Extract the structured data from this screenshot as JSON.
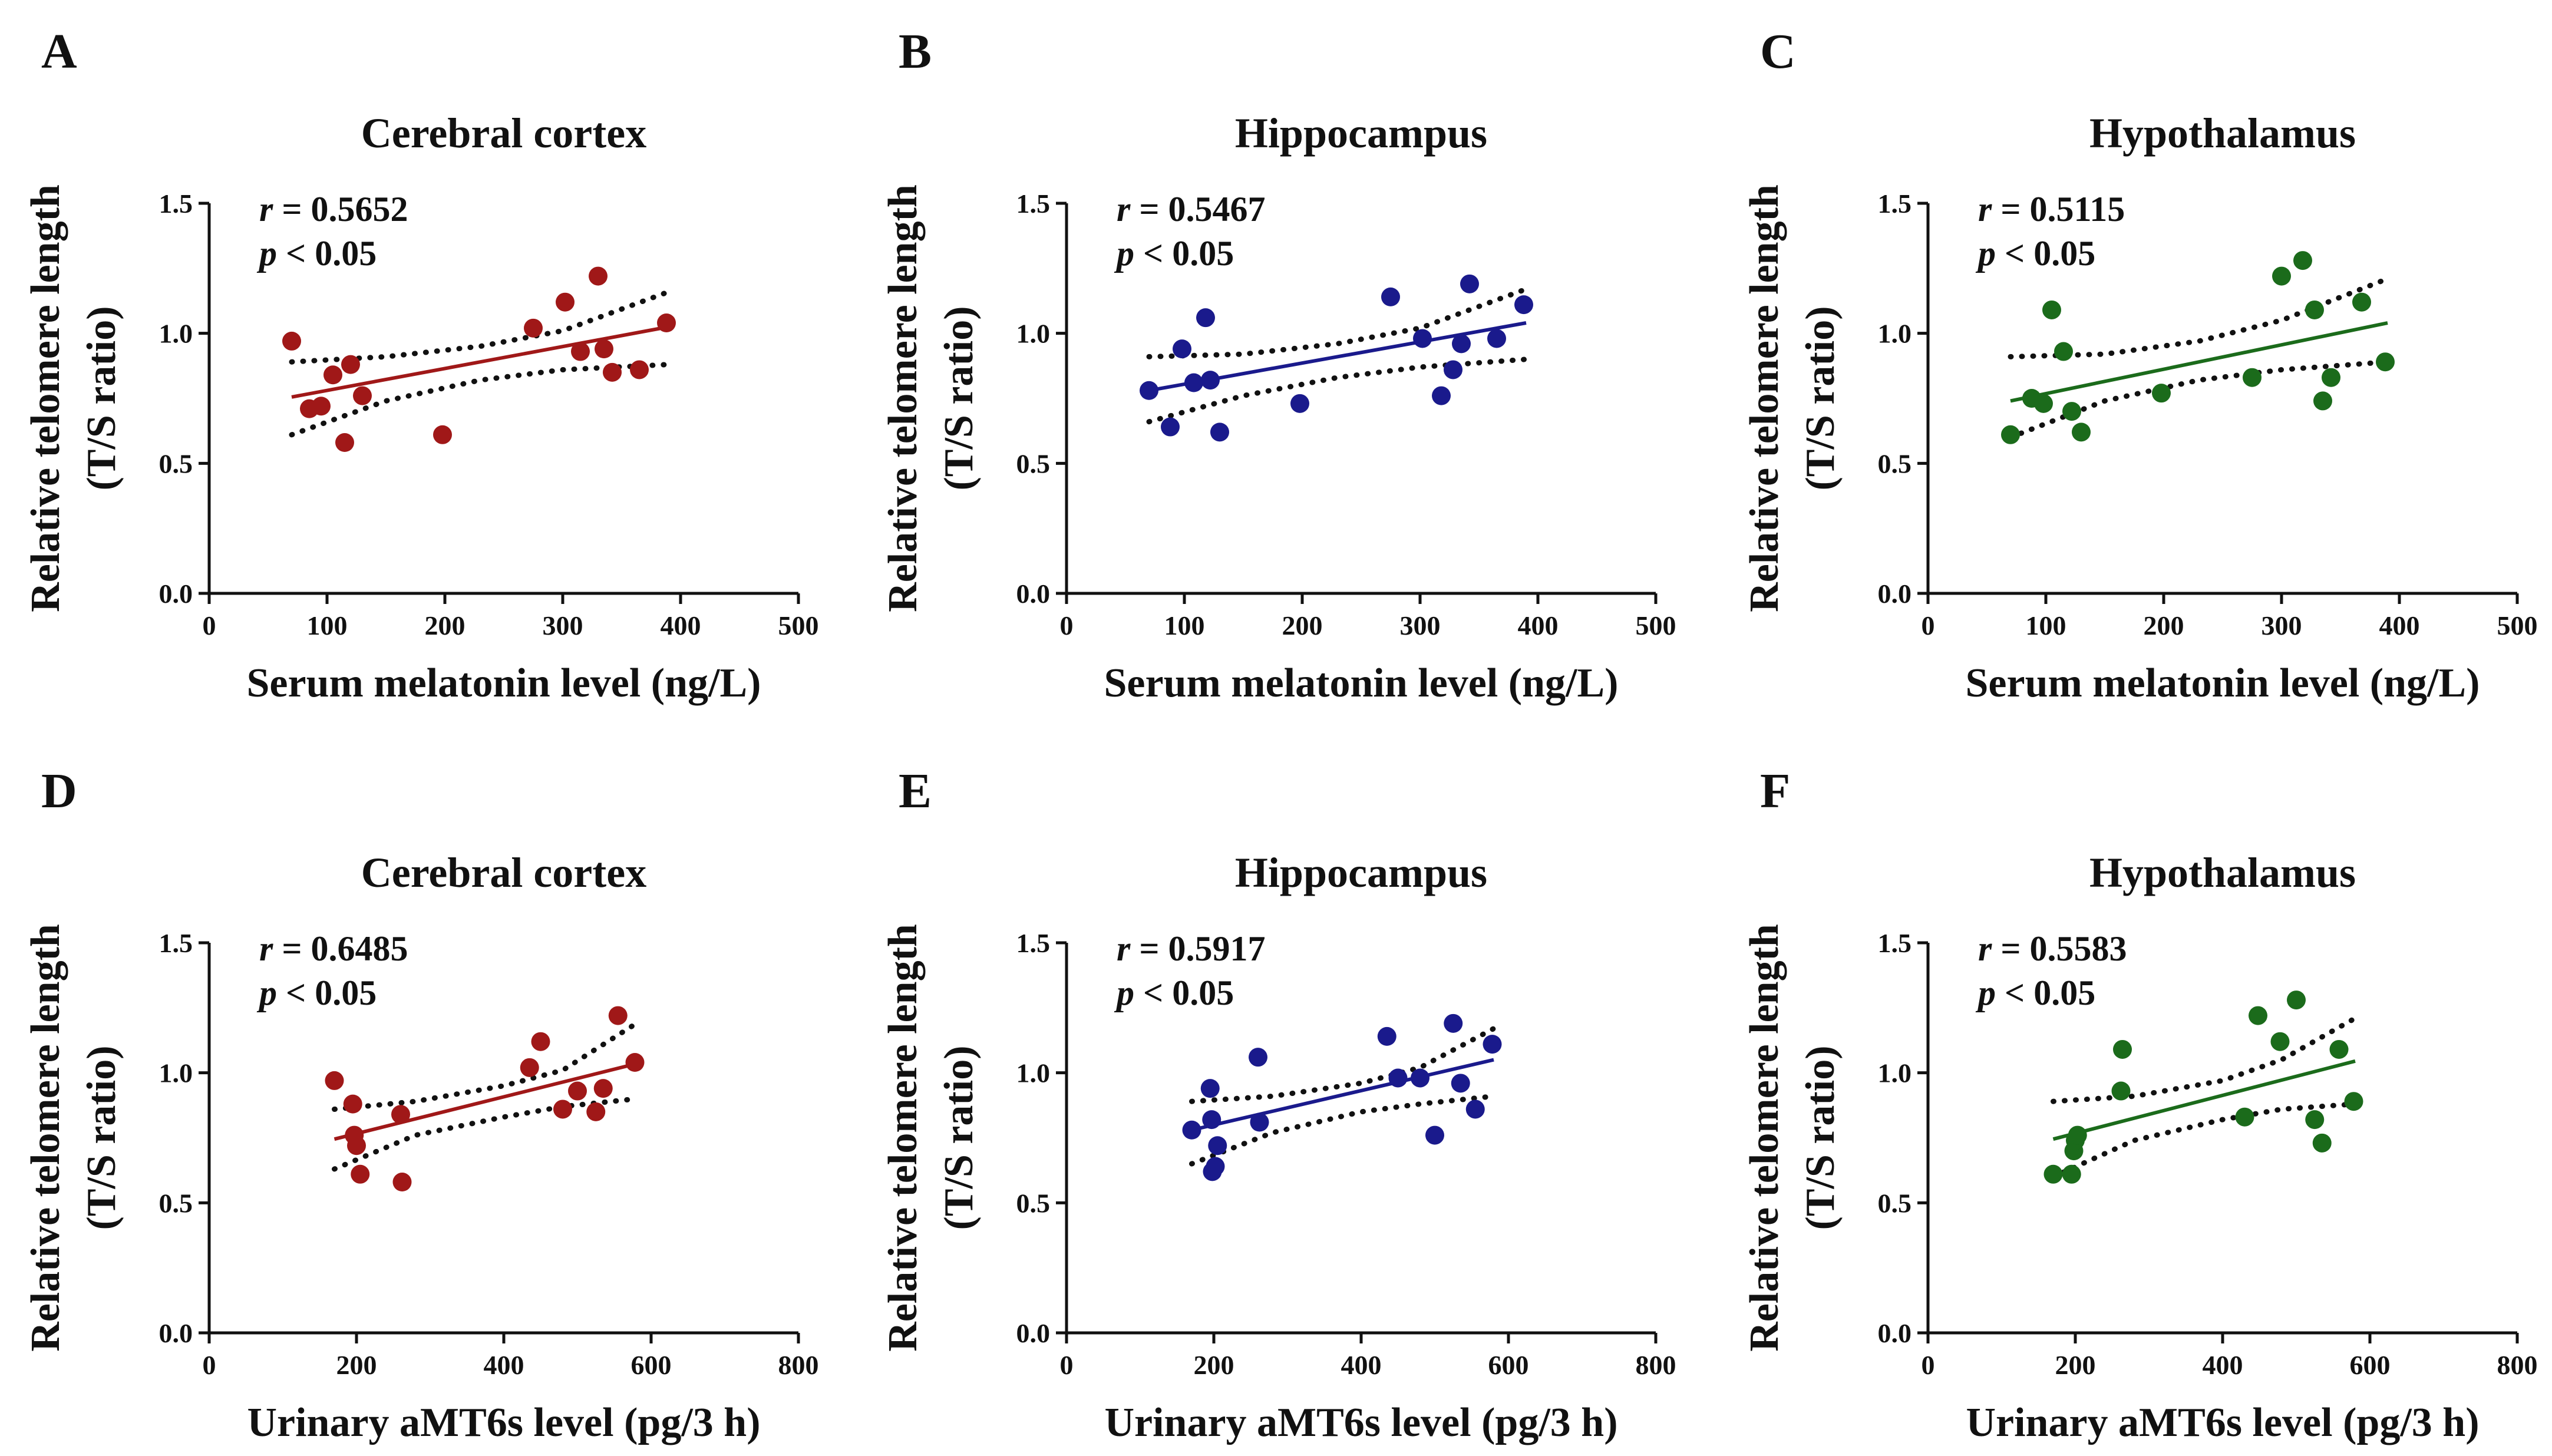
{
  "colors": {
    "red": "#a01818",
    "blue": "#1a1a8c",
    "green": "#1b6b1b"
  },
  "chart_data": [
    {
      "panel_letter": "A",
      "type": "scatter",
      "title": "Cerebral cortex",
      "xlabel": "Serum melatonin level (ng/L)",
      "ylabel_line1": "Relative telomere length",
      "ylabel_line2": "(T/S ratio)",
      "r_value": "0.5652",
      "p_value": "< 0.05",
      "xlim": [
        0,
        500
      ],
      "ylim": [
        0.0,
        1.5
      ],
      "xticks": [
        "0",
        "100",
        "200",
        "300",
        "400",
        "500"
      ],
      "yticks": [
        "0.0",
        "0.5",
        "1.0",
        "1.5"
      ],
      "color": "red",
      "points": [
        [
          70,
          0.97
        ],
        [
          85,
          0.71
        ],
        [
          95,
          0.72
        ],
        [
          105,
          0.84
        ],
        [
          115,
          0.58
        ],
        [
          120,
          0.88
        ],
        [
          130,
          0.76
        ],
        [
          198,
          0.61
        ],
        [
          275,
          1.02
        ],
        [
          302,
          1.12
        ],
        [
          315,
          0.93
        ],
        [
          330,
          1.22
        ],
        [
          335,
          0.94
        ],
        [
          342,
          0.85
        ],
        [
          365,
          0.86
        ],
        [
          388,
          1.04
        ]
      ],
      "fit": {
        "x": [
          70,
          390
        ],
        "y": [
          0.755,
          1.025
        ]
      },
      "ci_upper": [
        [
          70,
          0.89
        ],
        [
          150,
          0.91
        ],
        [
          230,
          0.95
        ],
        [
          300,
          1.01
        ],
        [
          390,
          1.16
        ]
      ],
      "ci_lower": [
        [
          70,
          0.61
        ],
        [
          150,
          0.74
        ],
        [
          230,
          0.82
        ],
        [
          300,
          0.86
        ],
        [
          390,
          0.88
        ]
      ]
    },
    {
      "panel_letter": "B",
      "type": "scatter",
      "title": "Hippocampus",
      "xlabel": "Serum melatonin level (ng/L)",
      "ylabel_line1": "Relative telomere length",
      "ylabel_line2": "(T/S ratio)",
      "r_value": "0.5467",
      "p_value": "< 0.05",
      "xlim": [
        0,
        500
      ],
      "ylim": [
        0.0,
        1.5
      ],
      "xticks": [
        "0",
        "100",
        "200",
        "300",
        "400",
        "500"
      ],
      "yticks": [
        "0.0",
        "0.5",
        "1.0",
        "1.5"
      ],
      "color": "blue",
      "points": [
        [
          70,
          0.78
        ],
        [
          88,
          0.64
        ],
        [
          98,
          0.94
        ],
        [
          108,
          0.81
        ],
        [
          118,
          1.06
        ],
        [
          122,
          0.82
        ],
        [
          130,
          0.62
        ],
        [
          198,
          0.73
        ],
        [
          275,
          1.14
        ],
        [
          302,
          0.98
        ],
        [
          318,
          0.76
        ],
        [
          328,
          0.86
        ],
        [
          335,
          0.96
        ],
        [
          342,
          1.19
        ],
        [
          365,
          0.98
        ],
        [
          388,
          1.11
        ]
      ],
      "fit": {
        "x": [
          70,
          390
        ],
        "y": [
          0.78,
          1.04
        ]
      },
      "ci_upper": [
        [
          70,
          0.91
        ],
        [
          150,
          0.92
        ],
        [
          230,
          0.96
        ],
        [
          300,
          1.02
        ],
        [
          390,
          1.17
        ]
      ],
      "ci_lower": [
        [
          70,
          0.66
        ],
        [
          150,
          0.76
        ],
        [
          230,
          0.83
        ],
        [
          300,
          0.87
        ],
        [
          390,
          0.9
        ]
      ]
    },
    {
      "panel_letter": "C",
      "type": "scatter",
      "title": "Hypothalamus",
      "xlabel": "Serum melatonin level (ng/L)",
      "ylabel_line1": "Relative telomere length",
      "ylabel_line2": "(T/S ratio)",
      "r_value": "0.5115",
      "p_value": "< 0.05",
      "xlim": [
        0,
        500
      ],
      "ylim": [
        0.0,
        1.5
      ],
      "xticks": [
        "0",
        "100",
        "200",
        "300",
        "400",
        "500"
      ],
      "yticks": [
        "0.0",
        "0.5",
        "1.0",
        "1.5"
      ],
      "color": "green",
      "points": [
        [
          70,
          0.61
        ],
        [
          88,
          0.75
        ],
        [
          98,
          0.73
        ],
        [
          105,
          1.09
        ],
        [
          115,
          0.93
        ],
        [
          122,
          0.7
        ],
        [
          130,
          0.62
        ],
        [
          198,
          0.77
        ],
        [
          275,
          0.83
        ],
        [
          300,
          1.22
        ],
        [
          318,
          1.28
        ],
        [
          328,
          1.09
        ],
        [
          335,
          0.74
        ],
        [
          342,
          0.83
        ],
        [
          368,
          1.12
        ],
        [
          388,
          0.89
        ]
      ],
      "fit": {
        "x": [
          70,
          390
        ],
        "y": [
          0.74,
          1.04
        ]
      },
      "ci_upper": [
        [
          70,
          0.91
        ],
        [
          150,
          0.92
        ],
        [
          230,
          0.97
        ],
        [
          300,
          1.05
        ],
        [
          390,
          1.21
        ]
      ],
      "ci_lower": [
        [
          70,
          0.6
        ],
        [
          150,
          0.74
        ],
        [
          230,
          0.82
        ],
        [
          300,
          0.86
        ],
        [
          390,
          0.89
        ]
      ]
    },
    {
      "panel_letter": "D",
      "type": "scatter",
      "title": "Cerebral cortex",
      "xlabel": "Urinary aMT6s level (pg/3 h)",
      "ylabel_line1": "Relative telomere length",
      "ylabel_line2": "(T/S ratio)",
      "r_value": "0.6485",
      "p_value": "< 0.05",
      "xlim": [
        0,
        800
      ],
      "ylim": [
        0.0,
        1.5
      ],
      "xticks": [
        "0",
        "200",
        "400",
        "600",
        "800"
      ],
      "yticks": [
        "0.0",
        "0.5",
        "1.0",
        "1.5"
      ],
      "color": "red",
      "points": [
        [
          170,
          0.97
        ],
        [
          195,
          0.88
        ],
        [
          197,
          0.76
        ],
        [
          200,
          0.72
        ],
        [
          205,
          0.61
        ],
        [
          260,
          0.84
        ],
        [
          262,
          0.58
        ],
        [
          435,
          1.02
        ],
        [
          450,
          1.12
        ],
        [
          480,
          0.86
        ],
        [
          500,
          0.93
        ],
        [
          525,
          0.85
        ],
        [
          535,
          0.94
        ],
        [
          555,
          1.22
        ],
        [
          578,
          1.04
        ]
      ],
      "fit": {
        "x": [
          170,
          580
        ],
        "y": [
          0.745,
          1.035
        ]
      },
      "ci_upper": [
        [
          170,
          0.86
        ],
        [
          280,
          0.89
        ],
        [
          400,
          0.95
        ],
        [
          480,
          1.01
        ],
        [
          580,
          1.19
        ]
      ],
      "ci_lower": [
        [
          170,
          0.63
        ],
        [
          280,
          0.76
        ],
        [
          400,
          0.83
        ],
        [
          480,
          0.87
        ],
        [
          580,
          0.9
        ]
      ]
    },
    {
      "panel_letter": "E",
      "type": "scatter",
      "title": "Hippocampus",
      "xlabel": "Urinary aMT6s level (pg/3 h)",
      "ylabel_line1": "Relative telomere length",
      "ylabel_line2": "(T/S ratio)",
      "r_value": "0.5917",
      "p_value": "< 0.05",
      "xlim": [
        0,
        800
      ],
      "ylim": [
        0.0,
        1.5
      ],
      "xticks": [
        "0",
        "200",
        "400",
        "600",
        "800"
      ],
      "yticks": [
        "0.0",
        "0.5",
        "1.0",
        "1.5"
      ],
      "color": "blue",
      "points": [
        [
          170,
          0.78
        ],
        [
          195,
          0.94
        ],
        [
          197,
          0.82
        ],
        [
          198,
          0.62
        ],
        [
          202,
          0.64
        ],
        [
          205,
          0.72
        ],
        [
          260,
          1.06
        ],
        [
          262,
          0.81
        ],
        [
          435,
          1.14
        ],
        [
          450,
          0.98
        ],
        [
          480,
          0.98
        ],
        [
          500,
          0.76
        ],
        [
          525,
          1.19
        ],
        [
          535,
          0.96
        ],
        [
          555,
          0.86
        ],
        [
          578,
          1.11
        ]
      ],
      "fit": {
        "x": [
          170,
          580
        ],
        "y": [
          0.78,
          1.05
        ]
      },
      "ci_upper": [
        [
          170,
          0.89
        ],
        [
          280,
          0.91
        ],
        [
          400,
          0.96
        ],
        [
          480,
          1.02
        ],
        [
          580,
          1.17
        ]
      ],
      "ci_lower": [
        [
          170,
          0.65
        ],
        [
          280,
          0.77
        ],
        [
          400,
          0.85
        ],
        [
          480,
          0.88
        ],
        [
          580,
          0.91
        ]
      ]
    },
    {
      "panel_letter": "F",
      "type": "scatter",
      "title": "Hypothalamus",
      "xlabel": "Urinary aMT6s level (pg/3 h)",
      "ylabel_line1": "Relative telomere length",
      "ylabel_line2": "(T/S ratio)",
      "r_value": "0.5583",
      "p_value": "< 0.05",
      "xlim": [
        0,
        800
      ],
      "ylim": [
        0.0,
        1.5
      ],
      "xticks": [
        "0",
        "200",
        "400",
        "600",
        "800"
      ],
      "yticks": [
        "0.0",
        "0.5",
        "1.0",
        "1.5"
      ],
      "color": "green",
      "points": [
        [
          170,
          0.61
        ],
        [
          195,
          0.61
        ],
        [
          198,
          0.7
        ],
        [
          200,
          0.74
        ],
        [
          203,
          0.76
        ],
        [
          262,
          0.93
        ],
        [
          264,
          1.09
        ],
        [
          430,
          0.83
        ],
        [
          448,
          1.22
        ],
        [
          478,
          1.12
        ],
        [
          500,
          1.28
        ],
        [
          525,
          0.82
        ],
        [
          535,
          0.73
        ],
        [
          558,
          1.09
        ],
        [
          578,
          0.89
        ]
      ],
      "fit": {
        "x": [
          170,
          580
        ],
        "y": [
          0.745,
          1.045
        ]
      },
      "ci_upper": [
        [
          170,
          0.89
        ],
        [
          280,
          0.91
        ],
        [
          400,
          0.97
        ],
        [
          480,
          1.05
        ],
        [
          580,
          1.21
        ]
      ],
      "ci_lower": [
        [
          170,
          0.6
        ],
        [
          280,
          0.74
        ],
        [
          400,
          0.82
        ],
        [
          480,
          0.86
        ],
        [
          580,
          0.88
        ]
      ]
    }
  ]
}
